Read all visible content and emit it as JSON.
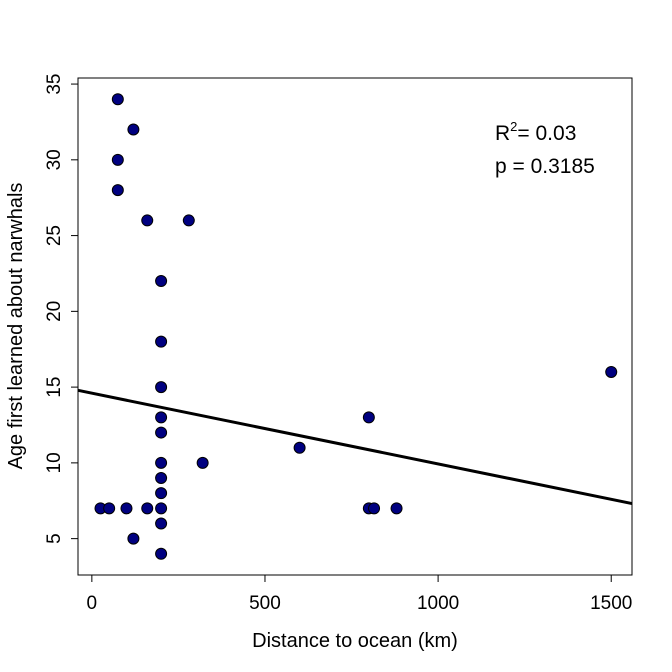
{
  "chart_data": {
    "type": "scatter",
    "title": "",
    "xlabel": "Distance to ocean (km)",
    "ylabel": "Age first learned about narwhals",
    "xlim": [
      -40,
      1560
    ],
    "ylim": [
      2.6,
      35.4
    ],
    "xticks": [
      0,
      500,
      1000,
      1500
    ],
    "yticks": [
      5,
      10,
      15,
      20,
      25,
      30,
      35
    ],
    "grid": false,
    "legend": "none",
    "point_color": "#000080",
    "line_color": "#000000",
    "points": [
      {
        "x": 25,
        "y": 7
      },
      {
        "x": 50,
        "y": 7
      },
      {
        "x": 75,
        "y": 34
      },
      {
        "x": 75,
        "y": 30
      },
      {
        "x": 75,
        "y": 28
      },
      {
        "x": 100,
        "y": 7
      },
      {
        "x": 120,
        "y": 32
      },
      {
        "x": 120,
        "y": 5
      },
      {
        "x": 160,
        "y": 26
      },
      {
        "x": 160,
        "y": 7
      },
      {
        "x": 200,
        "y": 22
      },
      {
        "x": 200,
        "y": 18
      },
      {
        "x": 200,
        "y": 15
      },
      {
        "x": 200,
        "y": 13
      },
      {
        "x": 200,
        "y": 12
      },
      {
        "x": 200,
        "y": 10
      },
      {
        "x": 200,
        "y": 9
      },
      {
        "x": 200,
        "y": 8
      },
      {
        "x": 200,
        "y": 7
      },
      {
        "x": 200,
        "y": 6
      },
      {
        "x": 200,
        "y": 4
      },
      {
        "x": 280,
        "y": 26
      },
      {
        "x": 320,
        "y": 10
      },
      {
        "x": 600,
        "y": 11
      },
      {
        "x": 800,
        "y": 13
      },
      {
        "x": 800,
        "y": 7
      },
      {
        "x": 815,
        "y": 7
      },
      {
        "x": 880,
        "y": 7
      },
      {
        "x": 1500,
        "y": 16
      }
    ],
    "regression": {
      "intercept": 14.6,
      "slope": -0.00467
    },
    "annotations": {
      "r2_label": "R",
      "r2_sup": "2",
      "r2_value": "= 0.03",
      "p_text": "p = 0.3185"
    }
  }
}
